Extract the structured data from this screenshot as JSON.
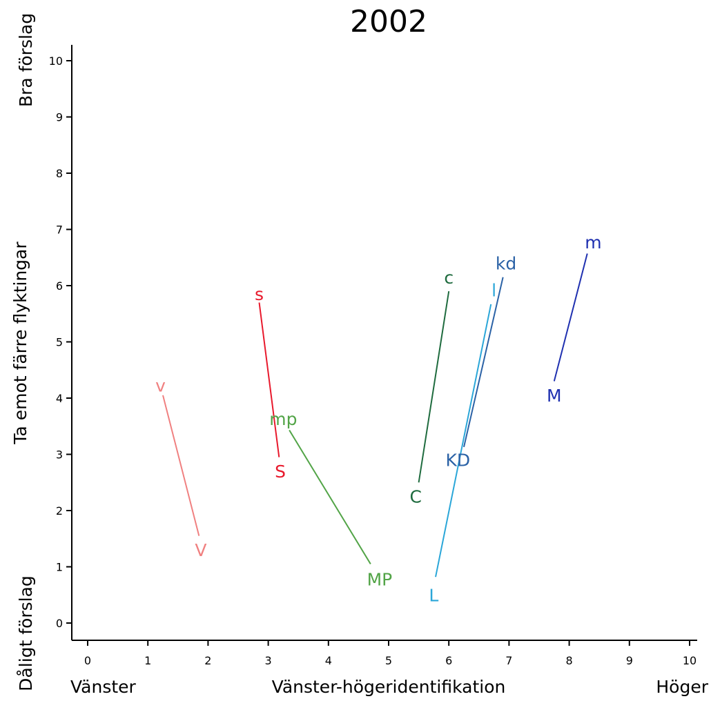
{
  "chart_data": {
    "type": "scatter",
    "title": "2002",
    "xlabel": "Vänster-högeridentifikation",
    "x_end_labels": {
      "left": "Vänster",
      "right": "Höger"
    },
    "ylabel": "Ta emot färre flyktingar",
    "y_end_labels": {
      "top": "Bra förslag",
      "bottom": "Dåligt förslag"
    },
    "xlim": [
      0,
      10
    ],
    "ylim": [
      0,
      10
    ],
    "xticks": [
      0,
      1,
      2,
      3,
      4,
      5,
      6,
      7,
      8,
      9,
      10
    ],
    "yticks": [
      0,
      1,
      2,
      3,
      4,
      5,
      6,
      7,
      8,
      9,
      10
    ],
    "grid": false,
    "legend": "none",
    "series": [
      {
        "name": "V",
        "color": "#f08080",
        "points": [
          {
            "label": "V",
            "x": 1.88,
            "y": 1.3
          },
          {
            "label": "v",
            "x": 1.21,
            "y": 4.23
          }
        ]
      },
      {
        "name": "S",
        "color": "#e8192c",
        "points": [
          {
            "label": "S",
            "x": 3.2,
            "y": 2.7
          },
          {
            "label": "s",
            "x": 2.85,
            "y": 5.85
          }
        ]
      },
      {
        "name": "MP",
        "color": "#52a447",
        "points": [
          {
            "label": "MP",
            "x": 4.85,
            "y": 0.78
          },
          {
            "label": "mp",
            "x": 3.25,
            "y": 3.63
          }
        ]
      },
      {
        "name": "C",
        "color": "#1e6b3e",
        "points": [
          {
            "label": "C",
            "x": 5.45,
            "y": 2.25
          },
          {
            "label": "c",
            "x": 6.0,
            "y": 6.15
          }
        ]
      },
      {
        "name": "L",
        "color": "#2aa6d8",
        "points": [
          {
            "label": "L",
            "x": 5.75,
            "y": 0.5
          },
          {
            "label": "l",
            "x": 6.75,
            "y": 5.92
          }
        ]
      },
      {
        "name": "KD",
        "color": "#2b62a6",
        "points": [
          {
            "label": "KD",
            "x": 6.15,
            "y": 2.9
          },
          {
            "label": "kd",
            "x": 6.95,
            "y": 6.4
          }
        ]
      },
      {
        "name": "M",
        "color": "#1f30b0",
        "points": [
          {
            "label": "M",
            "x": 7.75,
            "y": 4.05
          },
          {
            "label": "m",
            "x": 8.4,
            "y": 6.77
          }
        ]
      }
    ],
    "connectors": [
      {
        "series": "V",
        "from": [
          1.85,
          1.55
        ],
        "to": [
          1.25,
          4.05
        ]
      },
      {
        "series": "S",
        "from": [
          3.18,
          2.95
        ],
        "to": [
          2.85,
          5.7
        ]
      },
      {
        "series": "MP",
        "from": [
          4.7,
          1.05
        ],
        "to": [
          3.35,
          3.43
        ]
      },
      {
        "series": "C",
        "from": [
          5.5,
          2.5
        ],
        "to": [
          6.0,
          5.9
        ]
      },
      {
        "series": "L",
        "from": [
          5.78,
          0.82
        ],
        "to": [
          6.7,
          5.67
        ]
      },
      {
        "series": "KD",
        "from": [
          6.25,
          3.13
        ],
        "to": [
          6.9,
          6.15
        ]
      },
      {
        "series": "M",
        "from": [
          7.75,
          4.3
        ],
        "to": [
          8.3,
          6.57
        ]
      }
    ]
  }
}
